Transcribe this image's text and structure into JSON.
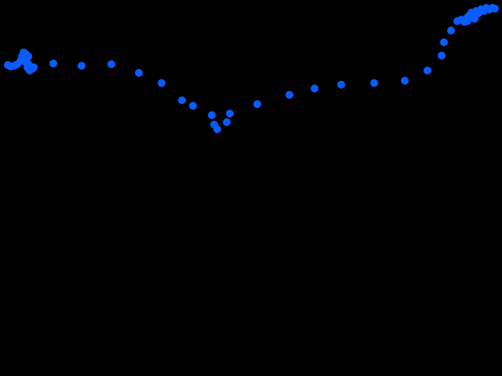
{
  "scene": {
    "background_color": "#000000",
    "dot_color": "#0a5cff"
  }
}
